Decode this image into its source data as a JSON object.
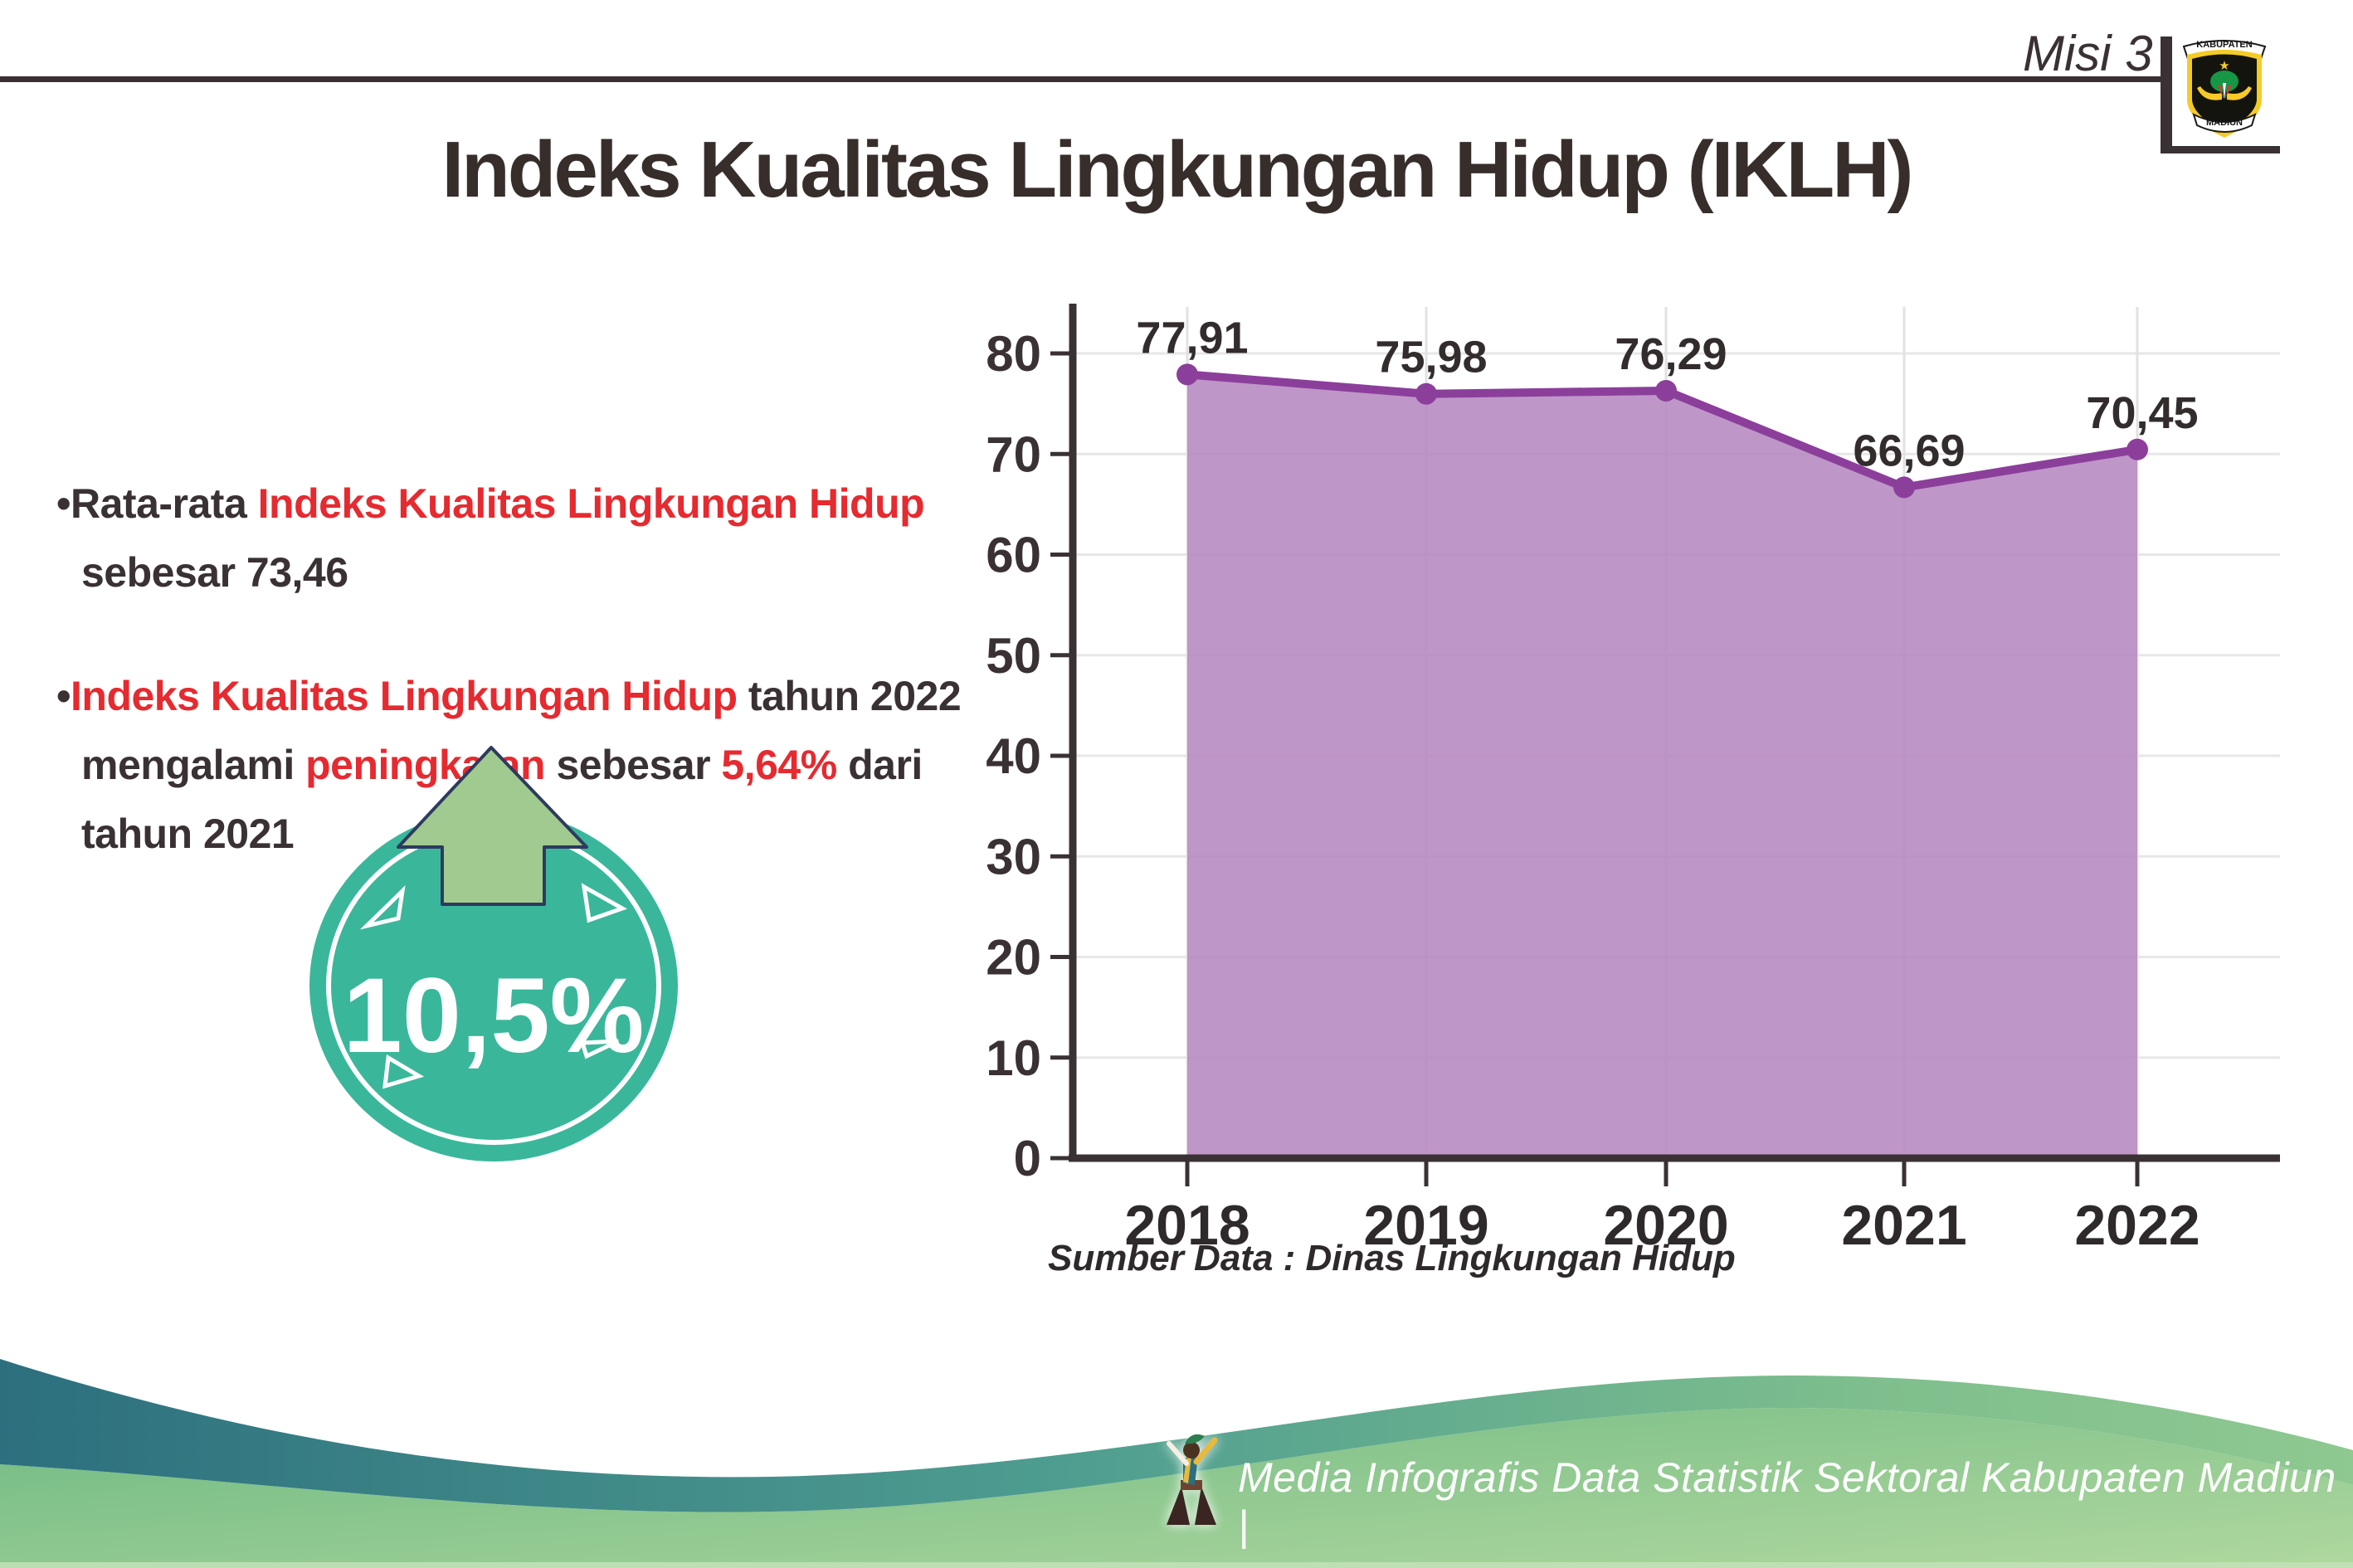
{
  "header": {
    "misi_label": "Misi 3",
    "title": "Indeks Kualitas Lingkungan Hidup (IKLH)",
    "logo": {
      "top_banner": "KABUPATEN",
      "bottom_banner": "MADIUN"
    }
  },
  "bullets": {
    "marker": "•",
    "item1": {
      "prefix": "Rata-rata ",
      "highlight": "Indeks Kualitas Lingkungan Hidup",
      "line2": "sebesar 73,46"
    },
    "item2": {
      "highlight1": "Indeks Kualitas Lingkungan Hidup",
      "after_highlight1": " tahun 2022",
      "line2_pre": "mengalami ",
      "line2_highlight": "peningkatan",
      "line2_mid": " sebesar ",
      "line2_highlight2": "5,64%",
      "line2_post": " dari",
      "line3": "tahun 2021"
    }
  },
  "badge": {
    "value": "10,5%"
  },
  "source_note": "Sumber Data : Dinas Lingkungan Hidup",
  "footer": {
    "credit": "Media Infografis Data Statistik Sektoral Kabupaten Madiun |"
  },
  "colors": {
    "dark": "#3A3134",
    "red": "#E52A30",
    "purple_fill": "#B687C0",
    "purple_line": "#8B3F9B",
    "grid_h": "#E7E7E7",
    "grid_v": "#E2E2E2",
    "teal_badge": "#3AB79A",
    "arrow_green": "#A0CA8F",
    "arrow_outline": "#2E3A5F",
    "footer_teal": "#2D6F7E",
    "footer_mid_green": "#4E9D90",
    "footer_light_green": "#AFD89E"
  },
  "chart_data": {
    "type": "area",
    "title": "",
    "categories": [
      "2018",
      "2019",
      "2020",
      "2021",
      "2022"
    ],
    "values": [
      77.91,
      75.98,
      76.29,
      66.69,
      70.45
    ],
    "value_labels": [
      "77,91",
      "75,98",
      "76,29",
      "66,69",
      "70,45"
    ],
    "xlabel": "",
    "ylabel": "",
    "ylim": [
      0,
      80
    ],
    "ytick_step": 10,
    "yticks": [
      0,
      10,
      20,
      30,
      40,
      50,
      60,
      70,
      80
    ],
    "grid": true,
    "legend": false,
    "fill_color": "#B687C0",
    "line_color": "#8B3F9B",
    "marker": "circle"
  }
}
